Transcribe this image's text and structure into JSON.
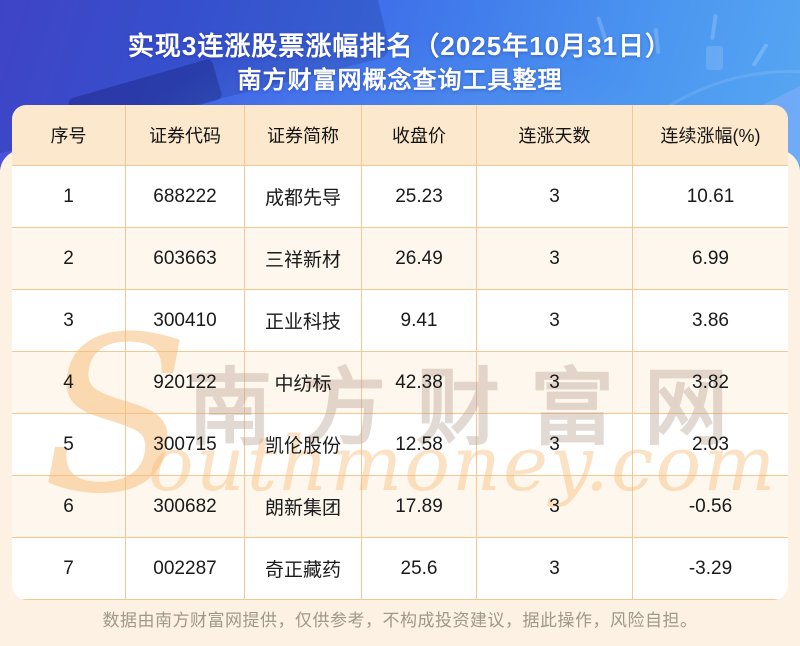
{
  "title": {
    "line1": "实现3连涨股票涨幅排名（2025年10月31日）",
    "line2": "南方财富网概念查询工具整理"
  },
  "chart_data": {
    "type": "table",
    "title": "实现3连涨股票涨幅排名（2025年10月31日）",
    "subtitle": "南方财富网概念查询工具整理",
    "columns": [
      "序号",
      "证券代码",
      "证券简称",
      "收盘价",
      "连涨天数",
      "连续涨幅(%)"
    ],
    "rows": [
      [
        "1",
        "688222",
        "成都先导",
        "25.23",
        "3",
        "10.61"
      ],
      [
        "2",
        "603663",
        "三祥新材",
        "26.49",
        "3",
        "6.99"
      ],
      [
        "3",
        "300410",
        "正业科技",
        "9.41",
        "3",
        "3.86"
      ],
      [
        "4",
        "920122",
        "中纺标",
        "42.38",
        "3",
        "3.82"
      ],
      [
        "5",
        "300715",
        "凯伦股份",
        "12.58",
        "3",
        "2.03"
      ],
      [
        "6",
        "300682",
        "朗新集团",
        "17.89",
        "3",
        "-0.56"
      ],
      [
        "7",
        "002287",
        "奇正藏药",
        "25.6",
        "3",
        "-3.29"
      ]
    ]
  },
  "watermark": {
    "initial": "S",
    "script": "outhmoney.com",
    "cjk": "南方财富网"
  },
  "footer": {
    "disclaimer": "数据由南方财富网提供，仅供参考，不构成投资建议，据此操作，风险自担。"
  },
  "colors": {
    "banner_gradient_start": "#4a4fdc",
    "banner_gradient_end": "#57a8f3",
    "header_bg": "#fce8cc",
    "row_alt_bg": "#fdf7ed",
    "grid_line": "#f6c793",
    "body_bg": "#fcf1e2",
    "watermark_orange": "#f8ba74",
    "footer_text": "#9f988c",
    "title_text": "#ffffff",
    "cell_text": "#1a1a1a"
  }
}
